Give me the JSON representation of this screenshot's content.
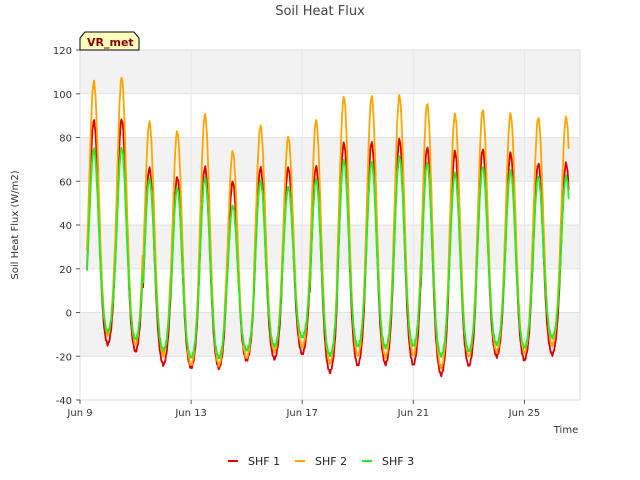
{
  "chart_data": {
    "type": "line",
    "title": "Soil Heat Flux",
    "xlabel": "Time",
    "ylabel": "Soil Heat Flux (W/m2)",
    "site_label": "VR_met",
    "ylim": [
      -40,
      120
    ],
    "xlim_days": [
      9.0,
      27.0
    ],
    "yticks": [
      -40,
      -20,
      0,
      20,
      40,
      60,
      80,
      100,
      120
    ],
    "xticks": [
      {
        "day": 9,
        "label": "Jun 9"
      },
      {
        "day": 13,
        "label": "Jun 13"
      },
      {
        "day": 17,
        "label": "Jun 17"
      },
      {
        "day": 21,
        "label": "Jun 21"
      },
      {
        "day": 25,
        "label": "Jun 25"
      }
    ],
    "grid": true,
    "legend_position": "bottom-center",
    "start_day": 9.25,
    "end_day": 26.6,
    "series": [
      {
        "name": "SHF 1",
        "color": "#dd0000",
        "daily_max": [
          88,
          88,
          66,
          62,
          66,
          60,
          66,
          66,
          67,
          77,
          78,
          79,
          75,
          74,
          74,
          73,
          68
        ],
        "daily_min": [
          -16,
          -20,
          -25,
          -27,
          -27,
          -23,
          -23,
          -20,
          -29,
          -26,
          -25,
          -26,
          -30,
          -26,
          -22,
          -23,
          -21
        ]
      },
      {
        "name": "SHF 2",
        "color": "#ffa500",
        "daily_max": [
          106,
          107,
          87,
          83,
          90,
          74,
          85,
          80,
          88,
          98,
          99,
          99,
          95,
          91,
          92,
          91,
          89
        ],
        "daily_min": [
          -12,
          -17,
          -21,
          -26,
          -26,
          -22,
          -20,
          -17,
          -25,
          -22,
          -22,
          -22,
          -27,
          -22,
          -20,
          -20,
          -17
        ]
      },
      {
        "name": "SHF 3",
        "color": "#22ee22",
        "daily_max": [
          75,
          75,
          61,
          57,
          61,
          49,
          60,
          57,
          61,
          69,
          69,
          71,
          68,
          64,
          66,
          65,
          62
        ],
        "daily_min": [
          -10,
          -14,
          -18,
          -22,
          -22,
          -18,
          -17,
          -12,
          -21,
          -17,
          -17,
          -17,
          -21,
          -19,
          -16,
          -17,
          -13
        ]
      }
    ]
  }
}
